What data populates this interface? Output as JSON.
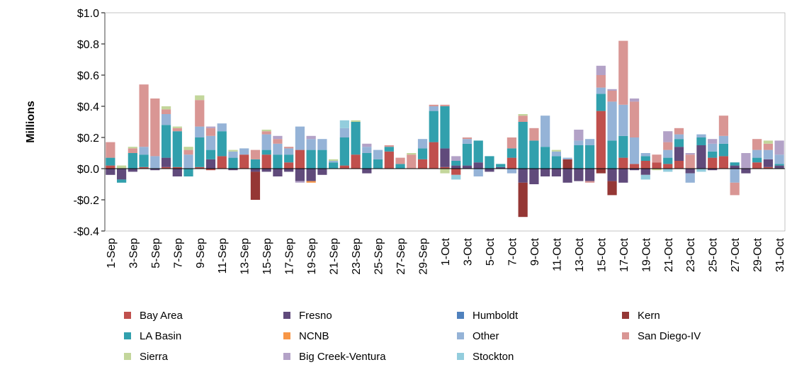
{
  "chart_data": {
    "type": "stacked-bar",
    "y_label": "Millions",
    "categories": [
      "1-Sep",
      null,
      "3-Sep",
      null,
      "5-Sep",
      null,
      "7-Sep",
      null,
      "9-Sep",
      null,
      "11-Sep",
      null,
      "13-Sep",
      null,
      "15-Sep",
      null,
      "17-Sep",
      null,
      "19-Sep",
      null,
      "21-Sep",
      null,
      "23-Sep",
      null,
      "25-Sep",
      null,
      "27-Sep",
      null,
      "29-Sep",
      null,
      "1-Oct",
      null,
      "3-Oct",
      null,
      "5-Oct",
      null,
      "7-Oct",
      null,
      "9-Oct",
      null,
      "11-Oct",
      null,
      "13-Oct",
      null,
      "15-Oct",
      null,
      "17-Oct",
      null,
      "19-Oct",
      null,
      "21-Oct",
      null,
      "23-Oct",
      null,
      "25-Oct",
      null,
      "27-Oct",
      null,
      "29-Oct",
      null,
      "31-Oct"
    ],
    "ylim": [
      -0.4,
      1.0
    ],
    "yticks": [
      {
        "value": -0.4,
        "label": "-$0.4"
      },
      {
        "value": -0.2,
        "label": "-$0.2"
      },
      {
        "value": 0,
        "label": "$0.0"
      },
      {
        "value": 0.2,
        "label": "$0.2"
      },
      {
        "value": 0.4,
        "label": "$0.4"
      },
      {
        "value": 0.6,
        "label": "$0.6"
      },
      {
        "value": 0.8,
        "label": "$0.8"
      },
      {
        "value": 1.0,
        "label": "$1.0"
      }
    ],
    "legend_columns": 4,
    "series": [
      {
        "name": "Bay Area",
        "color": "#c0504d",
        "values": [
          0.02,
          0,
          0,
          0.01,
          0,
          0.01,
          0.01,
          0,
          0.01,
          -0.01,
          0.08,
          0,
          0.09,
          0,
          0.09,
          0,
          0.04,
          0.12,
          0,
          0,
          0,
          0.02,
          0.09,
          0,
          0,
          0.11,
          0,
          0,
          0.06,
          0.17,
          0.01,
          -0.04,
          0,
          0,
          0,
          0,
          0.07,
          0,
          0,
          0,
          0,
          0,
          0,
          0,
          0.37,
          0,
          0.07,
          0.03,
          0.05,
          0.04,
          0.03,
          0.05,
          0,
          0,
          0.07,
          0.08,
          0,
          0,
          0.04,
          0.01,
          0
        ]
      },
      {
        "name": "Fresno",
        "color": "#604a7b",
        "values": [
          -0.04,
          -0.07,
          -0.02,
          0,
          -0.01,
          0.06,
          -0.05,
          0,
          0,
          0.06,
          0,
          -0.01,
          0,
          -0.02,
          -0.02,
          -0.05,
          -0.02,
          -0.08,
          -0.08,
          -0.04,
          0,
          0,
          0,
          -0.03,
          0,
          0,
          0,
          0,
          0,
          0,
          0.12,
          0.02,
          0.02,
          0.04,
          -0.02,
          0.01,
          0,
          -0.09,
          -0.1,
          -0.05,
          -0.05,
          -0.09,
          -0.08,
          -0.08,
          0,
          -0.08,
          -0.09,
          -0.01,
          -0.04,
          0,
          0,
          0.09,
          -0.03,
          0.15,
          -0.01,
          0,
          0.02,
          -0.03,
          0,
          0.05,
          0.02
        ]
      },
      {
        "name": "Humboldt",
        "color": "#4f81bd",
        "values": [
          0,
          0,
          0,
          0,
          0,
          0,
          0,
          0,
          0,
          0,
          0,
          0,
          0,
          0,
          0,
          0,
          0,
          0,
          0,
          0,
          0,
          0,
          0,
          0,
          0,
          0,
          0,
          0,
          0,
          0,
          0,
          0,
          0,
          0,
          0,
          0,
          0,
          0,
          0,
          0,
          0,
          0,
          0,
          0,
          0,
          0,
          0,
          0,
          0,
          0,
          0,
          0,
          0,
          0,
          0,
          0,
          0,
          0,
          0,
          0,
          0
        ]
      },
      {
        "name": "Kern",
        "color": "#953735",
        "values": [
          0,
          0,
          0,
          0,
          0,
          0,
          0,
          0,
          0,
          0,
          0,
          0,
          0,
          -0.18,
          0,
          0,
          0,
          0,
          0,
          0,
          0,
          0,
          0,
          0,
          0,
          0,
          0,
          0,
          0,
          0,
          0,
          0,
          0,
          0,
          0,
          0,
          0,
          -0.22,
          0,
          0,
          0,
          0.06,
          0,
          0,
          -0.03,
          -0.09,
          0,
          0,
          0,
          0,
          0,
          0,
          0,
          0,
          0,
          0,
          0,
          0,
          0,
          0,
          0
        ]
      },
      {
        "name": "LA Basin",
        "color": "#31a0ad",
        "values": [
          0.05,
          -0.02,
          0.1,
          0.08,
          0,
          0.21,
          0.23,
          -0.05,
          0.19,
          0.06,
          0.16,
          0.07,
          0,
          0.06,
          0.03,
          0.09,
          0.05,
          0,
          0.12,
          0.12,
          0.04,
          0.18,
          0.21,
          0.1,
          0.06,
          0.03,
          0.03,
          0,
          0.07,
          0.2,
          0.27,
          0.03,
          0.14,
          0.14,
          0.08,
          0.02,
          0.06,
          0.3,
          0.18,
          0.14,
          0.08,
          0,
          0.15,
          0.15,
          0.11,
          0.18,
          0.14,
          0,
          0.03,
          0,
          0.04,
          0.05,
          0,
          0.05,
          0.04,
          0.08,
          0.02,
          0,
          0.03,
          0,
          0.01
        ]
      },
      {
        "name": "NCNB",
        "color": "#f79646",
        "values": [
          0,
          0,
          0,
          0,
          0,
          0,
          0,
          0,
          0,
          0,
          0,
          0,
          0,
          0,
          0,
          0,
          0,
          0,
          -0.01,
          0,
          0,
          0,
          0,
          0,
          0,
          0,
          0,
          0,
          0,
          0,
          0,
          0,
          0,
          0,
          0,
          0,
          0,
          0,
          0,
          0,
          0,
          0,
          0,
          0,
          0,
          0,
          0,
          0,
          0,
          0,
          0,
          0,
          0,
          0,
          0,
          0,
          0,
          0,
          0,
          0,
          0
        ]
      },
      {
        "name": "Other",
        "color": "#95b3d7",
        "values": [
          0,
          0,
          0,
          0.05,
          0.08,
          0.07,
          0,
          0.09,
          0.07,
          0.09,
          0.05,
          0.04,
          0.04,
          0,
          0.1,
          0.07,
          0.04,
          0.15,
          0.07,
          0.07,
          0.01,
          0.06,
          0,
          0.04,
          0.06,
          0,
          0,
          0,
          0.06,
          0.03,
          0,
          0,
          0.03,
          -0.05,
          0,
          0,
          -0.03,
          0,
          0,
          0.2,
          0.03,
          0.01,
          0.03,
          0.04,
          0.04,
          0.25,
          0.2,
          0.17,
          0.02,
          0,
          0.05,
          0.03,
          -0.06,
          0.02,
          0.05,
          0.05,
          -0.09,
          0,
          0.05,
          0.06,
          0.06
        ]
      },
      {
        "name": "San Diego-IV",
        "color": "#d99694",
        "values": [
          0.1,
          0,
          0.03,
          0.4,
          0.37,
          0.03,
          0.02,
          0.03,
          0.17,
          0.05,
          0,
          0,
          0,
          0.06,
          0.02,
          0.03,
          0.01,
          0,
          0,
          0,
          0,
          0,
          0,
          0,
          0,
          0.01,
          0.04,
          0.09,
          0,
          0.01,
          0.01,
          0,
          0.01,
          0,
          0,
          0,
          0.07,
          0.04,
          0.08,
          0,
          0,
          0,
          0,
          -0.01,
          0.08,
          0.07,
          0.41,
          0.23,
          0,
          0.05,
          0.05,
          0.04,
          0.09,
          0,
          0,
          0.13,
          -0.08,
          0,
          0.07,
          0.04,
          0
        ]
      },
      {
        "name": "Sierra",
        "color": "#c3d69b",
        "values": [
          0,
          0.02,
          0.01,
          0,
          0,
          0.02,
          0.01,
          0.02,
          0.03,
          0,
          0,
          0.01,
          0,
          0,
          0.01,
          0,
          0,
          0,
          0,
          0,
          0.01,
          0,
          0.01,
          0,
          0,
          0,
          0,
          0.01,
          0,
          0,
          -0.03,
          0,
          0,
          0,
          0,
          0,
          0,
          0.01,
          0,
          0,
          0.01,
          0,
          0,
          0,
          0,
          0,
          0,
          0,
          0,
          -0.01,
          0,
          0,
          0,
          0,
          0,
          0,
          0,
          0,
          0,
          0.02,
          0
        ]
      },
      {
        "name": "Big Creek-Ventura",
        "color": "#b3a2c7",
        "values": [
          0,
          0,
          0,
          0,
          0,
          0,
          0,
          0,
          0,
          0.01,
          0,
          0,
          0,
          0,
          0,
          0.02,
          0,
          -0.01,
          0.02,
          0,
          0,
          0,
          0,
          0.02,
          0,
          0,
          0,
          0,
          0,
          0,
          0,
          0.03,
          0,
          0,
          0,
          0,
          0,
          0,
          0,
          0,
          0,
          0,
          0.07,
          0,
          0.06,
          0.01,
          0,
          0.02,
          0,
          0,
          0.07,
          0,
          0.01,
          0,
          0.03,
          0,
          0,
          0.1,
          0,
          0,
          0.09
        ]
      },
      {
        "name": "Stockton",
        "color": "#93cddd",
        "values": [
          0,
          0,
          0,
          0,
          0,
          0,
          0,
          0,
          0,
          0,
          0,
          0,
          0,
          0,
          0,
          0,
          0,
          0,
          0,
          0,
          0,
          0.05,
          0,
          0,
          0,
          0,
          0,
          0,
          0,
          0,
          0,
          -0.03,
          0,
          0,
          0,
          0,
          0,
          0,
          0,
          0,
          0,
          0,
          0,
          0,
          0,
          0,
          0,
          0,
          -0.03,
          0,
          -0.02,
          0,
          0,
          -0.02,
          0,
          0,
          0,
          0,
          0,
          0,
          0
        ]
      }
    ]
  }
}
